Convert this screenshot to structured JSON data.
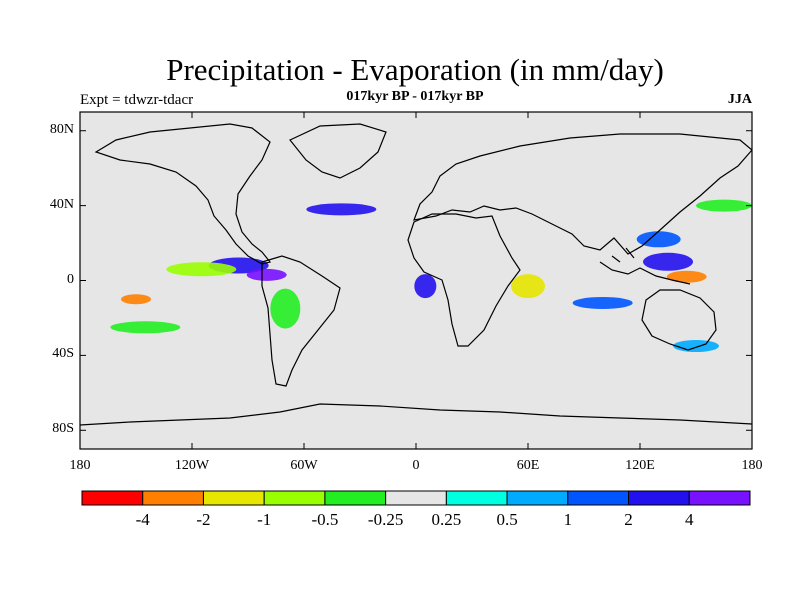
{
  "header": {
    "title": "Precipitation - Evaporation (in mm/day)",
    "experiment": "Expt = tdwzr-tdacr",
    "period": "017kyr BP - 017kyr BP",
    "season": "JJA"
  },
  "axes": {
    "lat_ticks": [
      {
        "label": "80N",
        "value": 80
      },
      {
        "label": "40N",
        "value": 40
      },
      {
        "label": "0",
        "value": 0
      },
      {
        "label": "40S",
        "value": -40
      },
      {
        "label": "80S",
        "value": -80
      }
    ],
    "lon_ticks": [
      {
        "label": "180",
        "value": -180
      },
      {
        "label": "120W",
        "value": -120
      },
      {
        "label": "60W",
        "value": -60
      },
      {
        "label": "0",
        "value": 0
      },
      {
        "label": "60E",
        "value": 60
      },
      {
        "label": "120E",
        "value": 120
      },
      {
        "label": "180",
        "value": 180
      }
    ]
  },
  "colorbar": {
    "colors": [
      "#ff0000",
      "#ff7f00",
      "#e6e600",
      "#99ff00",
      "#22ee22",
      "#e6e6e6",
      "#00ffe0",
      "#00aaff",
      "#0055ff",
      "#2211ee",
      "#7711ff"
    ],
    "labels": [
      "-4",
      "-2",
      "-1",
      "-0.5",
      "-0.25",
      "0.25",
      "0.5",
      "1",
      "2",
      "4"
    ]
  },
  "chart_data": {
    "type": "heatmap",
    "title": "Precipitation - Evaporation (in mm/day)",
    "units": "mm/day",
    "xlim": [
      -180,
      180
    ],
    "ylim": [
      -90,
      90
    ],
    "levels": [
      -4,
      -2,
      -1,
      -0.5,
      -0.25,
      0.25,
      0.5,
      1,
      2,
      4
    ],
    "anomaly_patches": [
      {
        "lon": -95,
        "lat": 8,
        "value": 2
      },
      {
        "lon": -80,
        "lat": 3,
        "value": 4
      },
      {
        "lon": -115,
        "lat": 6,
        "value": -1
      },
      {
        "lon": -150,
        "lat": -10,
        "value": -4
      },
      {
        "lon": 145,
        "lat": 2,
        "value": -4
      },
      {
        "lon": 135,
        "lat": 10,
        "value": 2
      },
      {
        "lon": 60,
        "lat": -3,
        "value": -2
      },
      {
        "lon": 5,
        "lat": -3,
        "value": 2
      },
      {
        "lon": -40,
        "lat": 38,
        "value": 2
      },
      {
        "lon": 130,
        "lat": 22,
        "value": 1
      },
      {
        "lon": 165,
        "lat": 40,
        "value": -0.5
      },
      {
        "lon": -145,
        "lat": -25,
        "value": -0.5
      },
      {
        "lon": -70,
        "lat": -15,
        "value": -0.5
      },
      {
        "lon": 100,
        "lat": -12,
        "value": 1
      },
      {
        "lon": 150,
        "lat": -35,
        "value": 0.5
      }
    ]
  }
}
